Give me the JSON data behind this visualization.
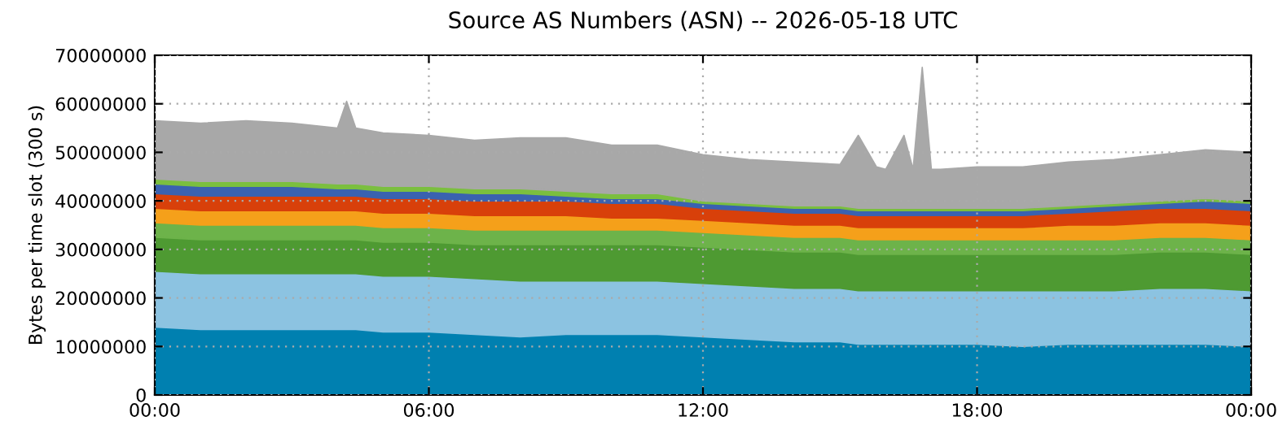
{
  "chart_data": {
    "type": "area",
    "stacked": true,
    "title": "Source AS Numbers (ASN) -- 2026-05-18 UTC",
    "ylabel": "Bytes per time slot (300 s)",
    "x": [
      0,
      1,
      2,
      3,
      4,
      4.2,
      4.4,
      5,
      6,
      7,
      8,
      9,
      10,
      11,
      12,
      13,
      14,
      15,
      15.4,
      15.8,
      16,
      16.4,
      16.6,
      16.8,
      17,
      17.2,
      18,
      19,
      20,
      21,
      22,
      23,
      24
    ],
    "series": [
      {
        "color": "#0080b0",
        "values": [
          14000000,
          13500000,
          13500000,
          13500000,
          13500000,
          13500000,
          13500000,
          13000000,
          13000000,
          12500000,
          12000000,
          12500000,
          12500000,
          12500000,
          12000000,
          11500000,
          11000000,
          11000000,
          10500000,
          10500000,
          10500000,
          10500000,
          10500000,
          10500000,
          10500000,
          10500000,
          10500000,
          10000000,
          10500000,
          10500000,
          10500000,
          10500000,
          10000000
        ]
      },
      {
        "color": "#8cc3e1",
        "values": [
          11500000,
          11500000,
          11500000,
          11500000,
          11500000,
          11500000,
          11500000,
          11500000,
          11500000,
          11500000,
          11500000,
          11000000,
          11000000,
          11000000,
          11000000,
          11000000,
          11000000,
          11000000,
          11000000,
          11000000,
          11000000,
          11000000,
          11000000,
          11000000,
          11000000,
          11000000,
          11000000,
          11500000,
          11000000,
          11000000,
          11500000,
          11500000,
          11500000
        ]
      },
      {
        "color": "#4e9a32",
        "values": [
          7000000,
          7000000,
          7000000,
          7000000,
          7000000,
          7000000,
          7000000,
          7000000,
          7000000,
          7000000,
          7500000,
          7500000,
          7500000,
          7500000,
          7500000,
          7500000,
          7500000,
          7500000,
          7500000,
          7500000,
          7500000,
          7500000,
          7500000,
          7500000,
          7500000,
          7500000,
          7500000,
          7500000,
          7500000,
          7500000,
          7500000,
          7500000,
          7500000
        ]
      },
      {
        "color": "#6db34a",
        "values": [
          3000000,
          3000000,
          3000000,
          3000000,
          3000000,
          3000000,
          3000000,
          3000000,
          3000000,
          3000000,
          3000000,
          3000000,
          3000000,
          3000000,
          3000000,
          3000000,
          3000000,
          3000000,
          3000000,
          3000000,
          3000000,
          3000000,
          3000000,
          3000000,
          3000000,
          3000000,
          3000000,
          3000000,
          3000000,
          3000000,
          3000000,
          3000000,
          3000000
        ]
      },
      {
        "color": "#f5a01a",
        "values": [
          3000000,
          3000000,
          3000000,
          3000000,
          3000000,
          3000000,
          3000000,
          3000000,
          3000000,
          3000000,
          3000000,
          3000000,
          2500000,
          2500000,
          2500000,
          2500000,
          2500000,
          2500000,
          2500000,
          2500000,
          2500000,
          2500000,
          2500000,
          2500000,
          2500000,
          2500000,
          2500000,
          2500000,
          3000000,
          3000000,
          3000000,
          3000000,
          3000000
        ]
      },
      {
        "color": "#d8400a",
        "values": [
          3000000,
          3000000,
          3000000,
          3000000,
          3000000,
          3000000,
          3000000,
          3000000,
          3000000,
          3000000,
          3000000,
          3000000,
          3000000,
          3000000,
          2500000,
          2500000,
          2500000,
          2500000,
          2500000,
          2500000,
          2500000,
          2500000,
          2500000,
          2500000,
          2500000,
          2500000,
          2500000,
          2500000,
          2500000,
          3000000,
          3000000,
          3000000,
          3000000
        ]
      },
      {
        "color": "#3a62b0",
        "values": [
          2000000,
          2000000,
          2000000,
          2000000,
          1500000,
          1500000,
          1500000,
          1500000,
          1500000,
          1500000,
          1500000,
          1000000,
          1000000,
          1000000,
          1000000,
          1000000,
          1000000,
          1000000,
          1000000,
          1000000,
          1000000,
          1000000,
          1000000,
          1000000,
          1000000,
          1000000,
          1000000,
          1000000,
          1000000,
          1000000,
          1000000,
          1500000,
          1500000
        ]
      },
      {
        "color": "#7bbf3f",
        "values": [
          1000000,
          1000000,
          1000000,
          1000000,
          1000000,
          1000000,
          1000000,
          1000000,
          1000000,
          1000000,
          1000000,
          1000000,
          1000000,
          1000000,
          500000,
          500000,
          500000,
          500000,
          500000,
          500000,
          500000,
          500000,
          500000,
          500000,
          500000,
          500000,
          500000,
          500000,
          500000,
          500000,
          500000,
          500000,
          500000
        ]
      },
      {
        "color": "#a8a8a8",
        "values": [
          12000000,
          12000000,
          12500000,
          12000000,
          11500000,
          17000000,
          11500000,
          11000000,
          10500000,
          10000000,
          10500000,
          11000000,
          10000000,
          10000000,
          9500000,
          9000000,
          9000000,
          8500000,
          15000000,
          8500000,
          8000000,
          15000000,
          8000000,
          29000000,
          8000000,
          8000000,
          8500000,
          8500000,
          9000000,
          9000000,
          9500000,
          10000000,
          10000000
        ]
      }
    ],
    "xlim": [
      0,
      24
    ],
    "xticks": [
      {
        "value": 0,
        "label": "00:00"
      },
      {
        "value": 6,
        "label": "06:00"
      },
      {
        "value": 12,
        "label": "12:00"
      },
      {
        "value": 18,
        "label": "18:00"
      },
      {
        "value": 24,
        "label": "00:00"
      }
    ],
    "ylim": [
      0,
      70000000
    ],
    "yticks": [
      0,
      10000000,
      20000000,
      30000000,
      40000000,
      50000000,
      60000000,
      70000000
    ],
    "grid": true
  }
}
